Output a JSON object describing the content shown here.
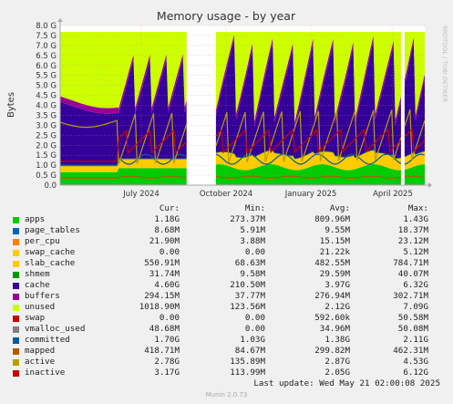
{
  "chart_data": {
    "type": "area",
    "title": "Memory usage - by year",
    "ylabel": "Bytes",
    "side_label": "RRDTOOL / TOBI OETIKER",
    "ylim": [
      0,
      8.0
    ],
    "y_unit": "G",
    "y_ticks": [
      "0.0",
      "0.5 G",
      "1.0 G",
      "1.5 G",
      "2.0 G",
      "2.5 G",
      "3.0 G",
      "3.5 G",
      "4.0 G",
      "4.5 G",
      "5.0 G",
      "5.5 G",
      "6.0 G",
      "6.5 G",
      "7.0 G",
      "7.5 G",
      "8.0 G"
    ],
    "x_ticks": [
      "July 2024",
      "October 2024",
      "January 2025",
      "April 2025"
    ],
    "grid": true,
    "colors": {
      "apps": "#00cc00",
      "page_tables": "#0066b3",
      "per_cpu": "#ff8000",
      "swap_cache": "#ffcc00",
      "slab_cache": "#ffcc00",
      "shmem": "#009900",
      "cache": "#330099",
      "buffers": "#990099",
      "unused": "#ccff00",
      "swap": "#cc0000",
      "vmalloc_used": "#808080",
      "committed": "#005c99",
      "mapped": "#b35a00",
      "active": "#b3a100",
      "inactive": "#cc0000"
    },
    "legend_columns": [
      "Cur:",
      "Min:",
      "Avg:",
      "Max:"
    ],
    "series": [
      {
        "name": "apps",
        "cur": "1.18G",
        "min": "273.37M",
        "avg": "809.96M",
        "max": "1.43G"
      },
      {
        "name": "page_tables",
        "cur": "8.68M",
        "min": "5.91M",
        "avg": "9.55M",
        "max": "18.37M"
      },
      {
        "name": "per_cpu",
        "cur": "21.90M",
        "min": "3.88M",
        "avg": "15.15M",
        "max": "23.12M"
      },
      {
        "name": "swap_cache",
        "cur": "0.00",
        "min": "0.00",
        "avg": "21.22k",
        "max": "5.12M"
      },
      {
        "name": "slab_cache",
        "cur": "550.91M",
        "min": "68.63M",
        "avg": "482.55M",
        "max": "784.71M"
      },
      {
        "name": "shmem",
        "cur": "31.74M",
        "min": "9.58M",
        "avg": "29.59M",
        "max": "40.07M"
      },
      {
        "name": "cache",
        "cur": "4.60G",
        "min": "210.50M",
        "avg": "3.97G",
        "max": "6.32G"
      },
      {
        "name": "buffers",
        "cur": "294.15M",
        "min": "37.77M",
        "avg": "276.94M",
        "max": "302.71M"
      },
      {
        "name": "unused",
        "cur": "1018.90M",
        "min": "123.56M",
        "avg": "2.12G",
        "max": "7.09G"
      },
      {
        "name": "swap",
        "cur": "0.00",
        "min": "0.00",
        "avg": "592.60k",
        "max": "50.58M"
      },
      {
        "name": "vmalloc_used",
        "cur": "48.68M",
        "min": "0.00",
        "avg": "34.96M",
        "max": "50.08M"
      },
      {
        "name": "committed",
        "cur": "1.70G",
        "min": "1.03G",
        "avg": "1.38G",
        "max": "2.11G"
      },
      {
        "name": "mapped",
        "cur": "418.71M",
        "min": "84.67M",
        "avg": "299.82M",
        "max": "462.31M"
      },
      {
        "name": "active",
        "cur": "2.78G",
        "min": "135.89M",
        "avg": "2.87G",
        "max": "4.53G"
      },
      {
        "name": "inactive",
        "cur": "3.17G",
        "min": "113.99M",
        "avg": "2.05G",
        "max": "6.12G"
      }
    ]
  },
  "footer": {
    "last_update": "Last update: Wed May 21 02:00:08 2025",
    "munin": "Munin 2.0.73"
  }
}
